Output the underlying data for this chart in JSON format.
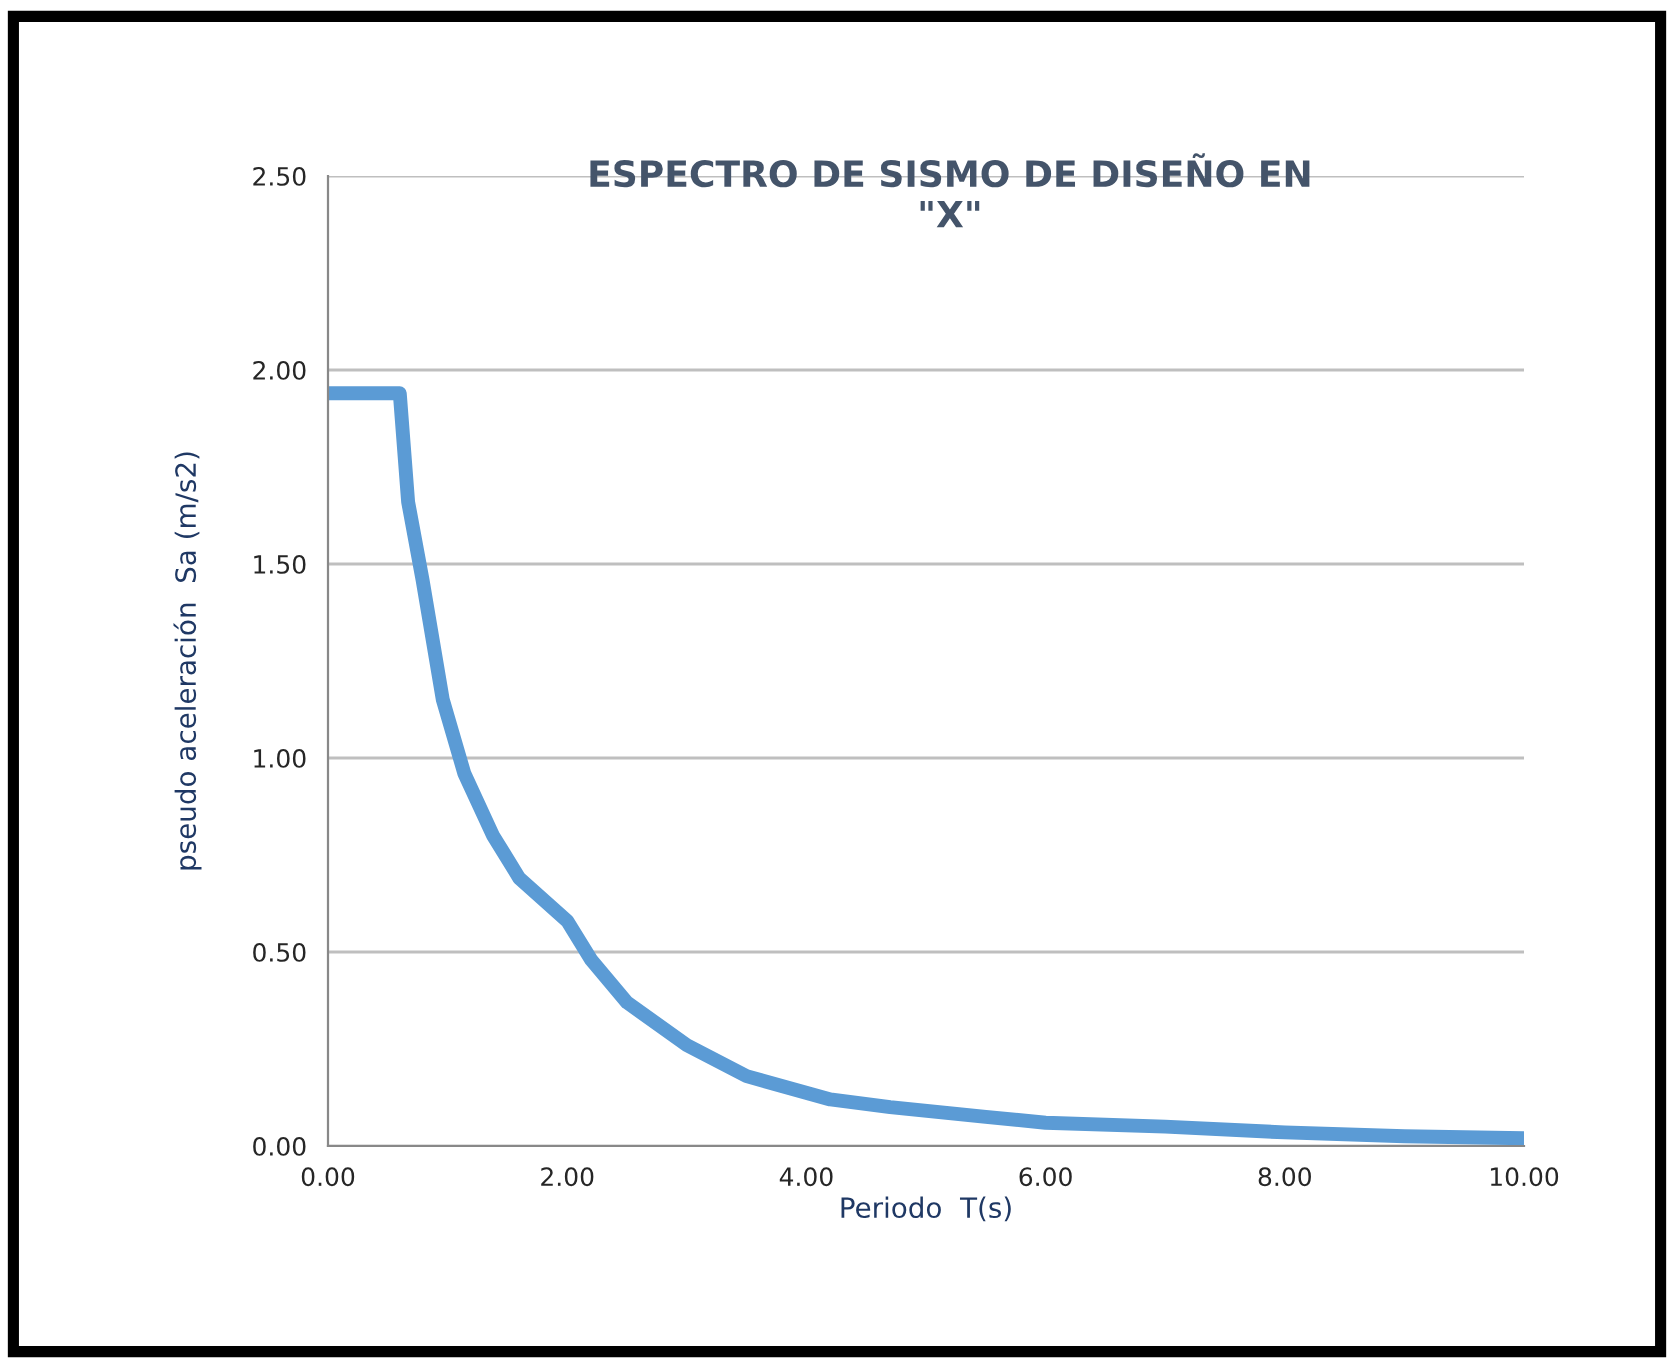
{
  "chart_data": {
    "type": "line",
    "title": "ESPECTRO DE SISMO DE DISEÑO EN\n\"X\"",
    "xlabel": "Periodo  T(s)",
    "ylabel": "pseudo aceleración  Sa (m/s2)",
    "x": [
      0,
      0.6,
      0.67,
      0.79,
      0.96,
      1.14,
      1.38,
      1.6,
      2.0,
      2.2,
      2.5,
      3.0,
      3.5,
      4.2,
      4.7,
      5.5,
      6.0,
      7.0,
      8.0,
      9.0,
      10.0
    ],
    "series": [
      {
        "color": "#5b9bd5",
        "values": [
          1.94,
          1.94,
          1.66,
          1.46,
          1.15,
          0.96,
          0.8,
          0.69,
          0.58,
          0.48,
          0.37,
          0.26,
          0.18,
          0.12,
          0.1,
          0.075,
          0.06,
          0.05,
          0.035,
          0.025,
          0.02
        ]
      }
    ],
    "xlim": [
      0,
      10
    ],
    "ylim": [
      0,
      2.5
    ],
    "xticks": [
      {
        "value": 0,
        "label": "0.00"
      },
      {
        "value": 2,
        "label": "2.00"
      },
      {
        "value": 4,
        "label": "4.00"
      },
      {
        "value": 6,
        "label": "6.00"
      },
      {
        "value": 8,
        "label": "8.00"
      },
      {
        "value": 10,
        "label": "10.00"
      }
    ],
    "yticks": [
      {
        "value": 0,
        "label": "0.00"
      },
      {
        "value": 0.5,
        "label": "0.50"
      },
      {
        "value": 1,
        "label": "1.00"
      },
      {
        "value": 1.5,
        "label": "1.50"
      },
      {
        "value": 2,
        "label": "2.00"
      },
      {
        "value": 2.5,
        "label": "2.50"
      }
    ],
    "grid": "y"
  }
}
